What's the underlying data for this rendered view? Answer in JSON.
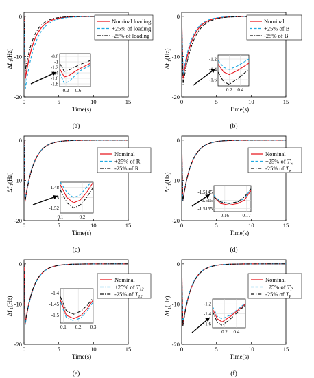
{
  "chart_data": [
    {
      "type": "line",
      "panel_label": "(a)",
      "xlabel": "Time(s)",
      "ylabel": "Δf₁(Hz)",
      "xlim": [
        0,
        15
      ],
      "ylim": [
        -20,
        1
      ],
      "xticks": [
        "0",
        "5",
        "10",
        "15"
      ],
      "yticks": [
        "0",
        "-10",
        "-20"
      ],
      "legend": [
        "Nominal loading",
        "+25% of loading",
        "-25% of loading"
      ],
      "legend_position": "top-right",
      "series": [
        {
          "name": "Nominal loading",
          "color": "#e8171f",
          "dash": "solid",
          "peak": -15.5,
          "t_peak": 0.2,
          "tau": 1.35
        },
        {
          "name": "+25% of loading",
          "color": "#1fa9e1",
          "dash": "dashed",
          "peak": -18.0,
          "t_peak": 0.2,
          "tau": 1.45
        },
        {
          "name": "-25% of loading",
          "color": "#111111",
          "dash": "dashdot",
          "peak": -13.5,
          "t_peak": 0.2,
          "tau": 1.25
        }
      ],
      "inset": {
        "xlim": [
          0,
          1
        ],
        "ylim": [
          -1.9,
          -0.7
        ],
        "xticks": [
          "0.2",
          "0.6"
        ],
        "yticks": [
          "-0.8",
          "-1",
          "-1.2",
          "-1.4",
          "-1.6",
          "-1.8"
        ],
        "curves": [
          {
            "series": "Nominal loading",
            "x": [
              0,
              0.15,
              0.3,
              0.5,
              0.7,
              1.0
            ],
            "y": [
              -1.25,
              -1.55,
              -1.5,
              -1.35,
              -1.22,
              -1.05
            ]
          },
          {
            "series": "+25% of loading",
            "x": [
              0,
              0.15,
              0.3,
              0.5,
              0.7,
              1.0
            ],
            "y": [
              -1.4,
              -1.78,
              -1.72,
              -1.5,
              -1.3,
              -1.12
            ]
          },
          {
            "series": "-25% of loading",
            "x": [
              0,
              0.15,
              0.3,
              0.5,
              0.7,
              1.0
            ],
            "y": [
              -1.05,
              -1.35,
              -1.3,
              -1.18,
              -1.08,
              -0.95
            ]
          }
        ]
      }
    },
    {
      "type": "line",
      "panel_label": "(b)",
      "xlabel": "Time(s)",
      "ylabel": "Δf₁(Hz)",
      "xlim": [
        0,
        15
      ],
      "ylim": [
        -20,
        1
      ],
      "xticks": [
        "0",
        "5",
        "10",
        "15"
      ],
      "yticks": [
        "0",
        "-10",
        "-20"
      ],
      "legend": [
        "Nominal",
        "+25% of  B",
        "-25% of  B"
      ],
      "legend_position": "top-right",
      "series": [
        {
          "name": "Nominal",
          "color": "#e8171f",
          "dash": "solid",
          "peak": -15.5,
          "t_peak": 0.2,
          "tau": 1.35
        },
        {
          "name": "+25% of  B",
          "color": "#1fa9e1",
          "dash": "dashed",
          "peak": -14.5,
          "t_peak": 0.2,
          "tau": 1.3
        },
        {
          "name": "-25% of  B",
          "color": "#111111",
          "dash": "dashdot",
          "peak": -17.0,
          "t_peak": 0.2,
          "tau": 1.45
        }
      ],
      "inset": {
        "xlim": [
          0,
          0.55
        ],
        "ylim": [
          -1.72,
          -1.12
        ],
        "xticks": [
          "0.2",
          "0.4"
        ],
        "yticks": [
          "-1.2",
          "-1.4",
          "-1.6"
        ],
        "curves": [
          {
            "series": "Nominal",
            "x": [
              0,
              0.1,
              0.2,
              0.35,
              0.55
            ],
            "y": [
              -1.3,
              -1.45,
              -1.5,
              -1.42,
              -1.28
            ]
          },
          {
            "series": "+25% of  B",
            "x": [
              0,
              0.1,
              0.2,
              0.35,
              0.55
            ],
            "y": [
              -1.22,
              -1.36,
              -1.4,
              -1.33,
              -1.2
            ]
          },
          {
            "series": "-25% of  B",
            "x": [
              0,
              0.1,
              0.2,
              0.35,
              0.55
            ],
            "y": [
              -1.45,
              -1.64,
              -1.69,
              -1.58,
              -1.4
            ]
          }
        ]
      }
    },
    {
      "type": "line",
      "panel_label": "(c)",
      "xlabel": "Time(s)",
      "ylabel": "Δf₁(Hz)",
      "xlim": [
        0,
        15
      ],
      "ylim": [
        -20,
        1
      ],
      "xticks": [
        "0",
        "5",
        "10",
        "15"
      ],
      "yticks": [
        "0",
        "-10",
        "-20"
      ],
      "legend": [
        "Nominal",
        "+25% of R",
        "-25% of R"
      ],
      "legend_position": "top-right",
      "series": [
        {
          "name": "Nominal",
          "color": "#e8171f",
          "dash": "solid",
          "peak": -15.2,
          "t_peak": 0.15,
          "tau": 1.3
        },
        {
          "name": "+25% of R",
          "color": "#1fa9e1",
          "dash": "dashed",
          "peak": -15.0,
          "t_peak": 0.15,
          "tau": 1.3
        },
        {
          "name": "-25% of R",
          "color": "#111111",
          "dash": "dashdot",
          "peak": -15.4,
          "t_peak": 0.15,
          "tau": 1.3
        }
      ],
      "inset": {
        "xlim": [
          0.1,
          0.25
        ],
        "ylim": [
          -1.53,
          -1.47
        ],
        "xticks": [
          "0.1",
          "0.2"
        ],
        "yticks": [
          "-1.48",
          "-1.5",
          "-1.52"
        ],
        "curves": [
          {
            "series": "Nominal",
            "x": [
              0.1,
              0.13,
              0.16,
              0.19,
              0.22,
              0.25
            ],
            "y": [
              -1.475,
              -1.5,
              -1.51,
              -1.505,
              -1.49,
              -1.47
            ]
          },
          {
            "series": "+25% of R",
            "x": [
              0.1,
              0.13,
              0.16,
              0.19,
              0.22,
              0.25
            ],
            "y": [
              -1.47,
              -1.49,
              -1.5,
              -1.495,
              -1.48,
              -1.465
            ]
          },
          {
            "series": "-25% of R",
            "x": [
              0.1,
              0.13,
              0.16,
              0.19,
              0.22,
              0.25
            ],
            "y": [
              -1.485,
              -1.51,
              -1.52,
              -1.515,
              -1.5,
              -1.48
            ]
          }
        ]
      }
    },
    {
      "type": "line",
      "panel_label": "(d)",
      "xlabel": "Time(s)",
      "ylabel": "Δf₁(Hz)",
      "xlim": [
        0,
        15
      ],
      "ylim": [
        -20,
        1
      ],
      "xticks": [
        "0",
        "5",
        "10",
        "15"
      ],
      "yticks": [
        "0",
        "-10",
        "-20"
      ],
      "legend": [
        "Nominal",
        "+25% of  T_w",
        "-25% of  T_w"
      ],
      "legend_position": "top-right",
      "series": [
        {
          "name": "Nominal",
          "color": "#e8171f",
          "dash": "solid",
          "peak": -15.15,
          "t_peak": 0.16,
          "tau": 1.3
        },
        {
          "name": "+25% of  T_w",
          "color": "#1fa9e1",
          "dash": "dashed",
          "peak": -15.14,
          "t_peak": 0.16,
          "tau": 1.3
        },
        {
          "name": "-25% of  T_w",
          "color": "#111111",
          "dash": "dashdot",
          "peak": -15.16,
          "t_peak": 0.16,
          "tau": 1.3
        }
      ],
      "inset": {
        "xlim": [
          0.155,
          0.172
        ],
        "ylim": [
          -1.5157,
          -1.5141
        ],
        "xticks": [
          "0.16",
          "0.17"
        ],
        "yticks": [
          "-1.5145",
          "-1.515",
          "-1.5155"
        ],
        "curves": [
          {
            "series": "Nominal",
            "x": [
              0.155,
              0.158,
              0.162,
              0.166,
              0.169,
              0.172
            ],
            "y": [
              -1.5148,
              -1.5152,
              -1.5153,
              -1.5152,
              -1.515,
              -1.5144
            ]
          },
          {
            "series": "+25% of  T_w",
            "x": [
              0.155,
              0.158,
              0.162,
              0.166,
              0.169,
              0.172
            ],
            "y": [
              -1.5147,
              -1.5151,
              -1.5152,
              -1.5151,
              -1.5149,
              -1.5143
            ]
          },
          {
            "series": "-25% of  T_w",
            "x": [
              0.155,
              0.158,
              0.162,
              0.166,
              0.169,
              0.172
            ],
            "y": [
              -1.5148,
              -1.5151,
              -1.5152,
              -1.5151,
              -1.5148,
              -1.5143
            ]
          }
        ]
      }
    },
    {
      "type": "line",
      "panel_label": "(e)",
      "xlabel": "Time(s)",
      "ylabel": "Δf₁(Hz)",
      "xlim": [
        0,
        15
      ],
      "ylim": [
        -20,
        1
      ],
      "xticks": [
        "0",
        "5",
        "10",
        "15"
      ],
      "yticks": [
        "0",
        "-10",
        "-20"
      ],
      "legend": [
        "Nominal",
        "+25% of  T_12",
        "-25% of  T_12"
      ],
      "legend_position": "top-right",
      "series": [
        {
          "name": "Nominal",
          "color": "#e8171f",
          "dash": "solid",
          "peak": -15.0,
          "t_peak": 0.17,
          "tau": 1.3
        },
        {
          "name": "+25% of  T_12",
          "color": "#1fa9e1",
          "dash": "dashdot",
          "peak": -15.3,
          "t_peak": 0.17,
          "tau": 1.3
        },
        {
          "name": "-25% of  T_12",
          "color": "#111111",
          "dash": "dashdot",
          "peak": -14.7,
          "t_peak": 0.17,
          "tau": 1.3
        }
      ],
      "inset": {
        "xlim": [
          0.08,
          0.3
        ],
        "ylim": [
          -1.535,
          -1.38
        ],
        "xticks": [
          "0.1",
          "0.2",
          "0.3"
        ],
        "yticks": [
          "-1.4",
          "-1.45",
          "-1.5"
        ],
        "curves": [
          {
            "series": "Nominal",
            "x": [
              0.08,
              0.12,
              0.17,
              0.22,
              0.26,
              0.3
            ],
            "y": [
              -1.43,
              -1.5,
              -1.515,
              -1.5,
              -1.47,
              -1.43
            ]
          },
          {
            "series": "+25% of  T_12",
            "x": [
              0.08,
              0.12,
              0.17,
              0.22,
              0.26,
              0.3
            ],
            "y": [
              -1.44,
              -1.51,
              -1.525,
              -1.51,
              -1.48,
              -1.44
            ]
          },
          {
            "series": "-25% of  T_12",
            "x": [
              0.08,
              0.12,
              0.17,
              0.22,
              0.26,
              0.3
            ],
            "y": [
              -1.415,
              -1.48,
              -1.495,
              -1.48,
              -1.455,
              -1.42
            ]
          }
        ]
      }
    },
    {
      "type": "line",
      "panel_label": "(f)",
      "xlabel": "Time(s)",
      "ylabel": "Δf₁(Hz)",
      "xlim": [
        0,
        15
      ],
      "ylim": [
        -20,
        1
      ],
      "xticks": [
        "0",
        "5",
        "10",
        "15"
      ],
      "yticks": [
        "0",
        "-10",
        "-20"
      ],
      "legend": [
        "Nominal",
        "+25% of  T_P",
        "-25% of  T_P"
      ],
      "legend_position": "top-right",
      "series": [
        {
          "name": "Nominal",
          "color": "#e8171f",
          "dash": "solid",
          "peak": -15.2,
          "t_peak": 0.16,
          "tau": 1.3
        },
        {
          "name": "+25% of  T_P",
          "color": "#1fa9e1",
          "dash": "dashed",
          "peak": -14.8,
          "t_peak": 0.16,
          "tau": 1.3
        },
        {
          "name": "-25% of  T_P",
          "color": "#111111",
          "dash": "dashdot",
          "peak": -15.6,
          "t_peak": 0.16,
          "tau": 1.3
        }
      ],
      "inset": {
        "xlim": [
          0,
          0.55
        ],
        "ylim": [
          -1.68,
          -1.1
        ],
        "xticks": [
          "0.2",
          "0.4"
        ],
        "yticks": [
          "-1.2",
          "-1.4",
          "-1.6"
        ],
        "curves": [
          {
            "series": "Nominal",
            "x": [
              0,
              0.08,
              0.16,
              0.3,
              0.45,
              0.55
            ],
            "y": [
              -1.3,
              -1.5,
              -1.56,
              -1.45,
              -1.3,
              -1.2
            ]
          },
          {
            "series": "+25% of  T_P",
            "x": [
              0,
              0.08,
              0.16,
              0.3,
              0.45,
              0.55
            ],
            "y": [
              -1.25,
              -1.45,
              -1.5,
              -1.42,
              -1.28,
              -1.18
            ]
          },
          {
            "series": "-25% of  T_P",
            "x": [
              0,
              0.08,
              0.16,
              0.3,
              0.45,
              0.55
            ],
            "y": [
              -1.35,
              -1.57,
              -1.63,
              -1.5,
              -1.33,
              -1.22
            ]
          }
        ]
      }
    }
  ]
}
